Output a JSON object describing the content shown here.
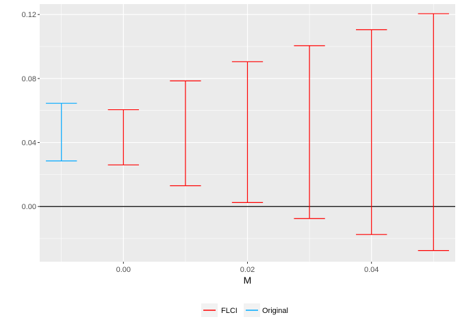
{
  "chart_data": {
    "type": "errorbar",
    "xlabel": "M",
    "ylabel": "",
    "xlim": [
      -0.0135,
      0.0535
    ],
    "ylim": [
      -0.0345,
      0.1265
    ],
    "x_ticks": [
      0.0,
      0.02,
      0.04
    ],
    "x_tick_labels": [
      "0.00",
      "0.02",
      "0.04"
    ],
    "y_ticks": [
      0.0,
      0.04,
      0.08,
      0.12
    ],
    "y_tick_labels": [
      "0.00",
      "0.04",
      "0.08",
      "0.12"
    ],
    "reference_line_y": 0,
    "grid": true,
    "legend_position": "bottom",
    "series": [
      {
        "name": "Original",
        "color": "#00a9ff",
        "points": [
          {
            "x": -0.01,
            "lb": 0.0285,
            "ub": 0.0645
          }
        ]
      },
      {
        "name": "FLCI",
        "color": "#f8766d",
        "points": [
          {
            "x": 0.0,
            "lb": 0.026,
            "ub": 0.0605
          },
          {
            "x": 0.01,
            "lb": 0.013,
            "ub": 0.0785
          },
          {
            "x": 0.02,
            "lb": 0.0025,
            "ub": 0.0905
          },
          {
            "x": 0.03,
            "lb": -0.0075,
            "ub": 0.1005
          },
          {
            "x": 0.04,
            "lb": -0.0175,
            "ub": 0.1105
          },
          {
            "x": 0.05,
            "lb": -0.0275,
            "ub": 0.1205
          }
        ]
      }
    ],
    "legend": [
      {
        "label": "FLCI",
        "color": "#ff0000"
      },
      {
        "label": "Original",
        "color": "#00a9ff"
      }
    ]
  }
}
